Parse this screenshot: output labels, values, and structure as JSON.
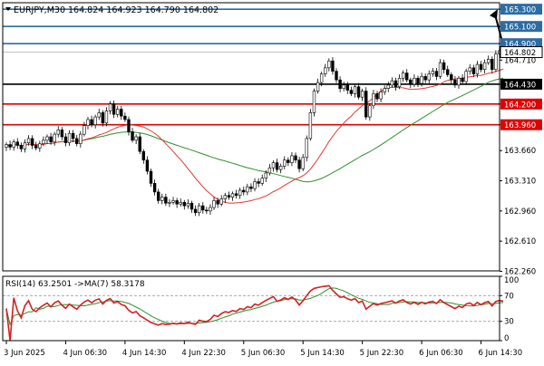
{
  "header": {
    "symbol_line": "EURJPY,M30  164.824 164.923 164.790 164.802"
  },
  "colors": {
    "background": "#ffffff",
    "frame": "#000000",
    "candle": "#000000",
    "ma_fast": "#e03a2f",
    "ma_slow": "#2f8f2f",
    "level_blue": "#2b6ca3",
    "level_black": "#000000",
    "level_red": "#e00000",
    "current_price_line": "#9aa0a6",
    "forecast_arrow": "#000000",
    "rsi_line": "#d42020",
    "rsi_ma_line": "#2f8f2f",
    "rsi_level": "#9e9e9e"
  },
  "chart_data": [
    {
      "type": "candlestick",
      "title": "EURJPY,M30",
      "ohlc_last": {
        "open": 164.824,
        "high": 164.923,
        "low": 164.79,
        "close": 164.802
      },
      "ylim": [
        162.265,
        165.375
      ],
      "y_ticks": [
        {
          "value": 165.3,
          "label": "165.300",
          "style": "level",
          "color": "#2b6ca3"
        },
        {
          "value": 165.1,
          "label": "165.100",
          "style": "level",
          "color": "#2b6ca3"
        },
        {
          "value": 164.9,
          "label": "164.900",
          "style": "level",
          "color": "#2b6ca3"
        },
        {
          "value": 164.802,
          "label": "164.802",
          "style": "current"
        },
        {
          "value": 164.71,
          "label": "164.710",
          "style": "plain"
        },
        {
          "value": 164.43,
          "label": "164.430",
          "style": "level",
          "color": "#000000"
        },
        {
          "value": 164.2,
          "label": "164.200",
          "style": "level",
          "color": "#e00000"
        },
        {
          "value": 163.96,
          "label": "163.960",
          "style": "level",
          "color": "#e00000"
        },
        {
          "value": 163.66,
          "label": "163.660",
          "style": "plain"
        },
        {
          "value": 163.31,
          "label": "163.310",
          "style": "plain"
        },
        {
          "value": 162.96,
          "label": "162.960",
          "style": "plain"
        },
        {
          "value": 162.61,
          "label": "162.610",
          "style": "plain"
        },
        {
          "value": 162.26,
          "label": "162.260",
          "style": "plain"
        }
      ],
      "hidden_labels": [
        "164.430",
        "164.200",
        "163.960"
      ],
      "levels": [
        {
          "value": 165.3,
          "color": "#2b6ca3"
        },
        {
          "value": 165.1,
          "color": "#2b6ca3"
        },
        {
          "value": 164.9,
          "color": "#2b6ca3"
        },
        {
          "value": 164.43,
          "color": "#000000"
        },
        {
          "value": 164.2,
          "color": "#e00000"
        },
        {
          "value": 163.96,
          "color": "#e00000"
        }
      ],
      "x_labels": [
        {
          "index": 0,
          "label": "3 Jun 2025"
        },
        {
          "index": 16,
          "label": "4 Jun 06:30"
        },
        {
          "index": 32,
          "label": "4 Jun 14:30"
        },
        {
          "index": 48,
          "label": "4 Jun 22:30"
        },
        {
          "index": 64,
          "label": "5 Jun 06:30"
        },
        {
          "index": 80,
          "label": "5 Jun 14:30"
        },
        {
          "index": 96,
          "label": "5 Jun 22:30"
        },
        {
          "index": 112,
          "label": "6 Jun 06:30"
        },
        {
          "index": 128,
          "label": "6 Jun 14:30"
        }
      ],
      "close": [
        163.73,
        163.7,
        163.76,
        163.72,
        163.68,
        163.75,
        163.8,
        163.72,
        163.69,
        163.74,
        163.78,
        163.82,
        163.76,
        163.85,
        163.9,
        163.82,
        163.75,
        163.86,
        163.8,
        163.74,
        163.85,
        163.95,
        164.02,
        163.96,
        164.05,
        164.1,
        163.98,
        164.12,
        164.2,
        164.08,
        164.14,
        164.06,
        164.02,
        163.88,
        163.78,
        163.82,
        163.65,
        163.55,
        163.42,
        163.28,
        163.18,
        163.08,
        163.12,
        163.05,
        163.06,
        163.08,
        163.04,
        163.06,
        163.02,
        163.05,
        162.98,
        162.94,
        163.02,
        162.97,
        162.96,
        163.0,
        163.08,
        163.04,
        163.1,
        163.14,
        163.12,
        163.16,
        163.14,
        163.2,
        163.18,
        163.24,
        163.22,
        163.3,
        163.28,
        163.34,
        163.4,
        163.46,
        163.52,
        163.44,
        163.48,
        163.55,
        163.52,
        163.6,
        163.55,
        163.45,
        163.58,
        163.8,
        164.1,
        164.35,
        164.45,
        164.55,
        164.62,
        164.7,
        164.58,
        164.48,
        164.38,
        164.42,
        164.36,
        164.32,
        164.4,
        164.28,
        164.35,
        164.05,
        164.18,
        164.32,
        164.26,
        164.34,
        164.38,
        164.42,
        164.47,
        164.4,
        164.5,
        164.56,
        164.48,
        164.43,
        164.5,
        164.44,
        164.52,
        164.48,
        164.55,
        164.58,
        164.52,
        164.68,
        164.6,
        164.54,
        164.48,
        164.42,
        164.5,
        164.46,
        164.58,
        164.62,
        164.55,
        164.66,
        164.6,
        164.68,
        164.72,
        164.6,
        164.78,
        164.82,
        164.802
      ],
      "ma_fast": {
        "period": 21,
        "name": ""
      },
      "ma_slow": {
        "period": 50,
        "name": ""
      },
      "forecast": {
        "from_value": 164.802,
        "to_value": 165.3
      }
    },
    {
      "type": "line",
      "title": "RSI(14) 63.2501 ->MA(7) 58.3178",
      "ylim": [
        0,
        100
      ],
      "y_ticks": [
        {
          "value": 100,
          "label": "100"
        },
        {
          "value": 70,
          "label": "70"
        },
        {
          "value": 30,
          "label": "30"
        },
        {
          "value": 0,
          "label": "0"
        }
      ],
      "rsi_period": 14,
      "rsi_ma_period": 7,
      "last_rsi": 63.2501,
      "last_rsi_ma": 58.3178
    }
  ]
}
